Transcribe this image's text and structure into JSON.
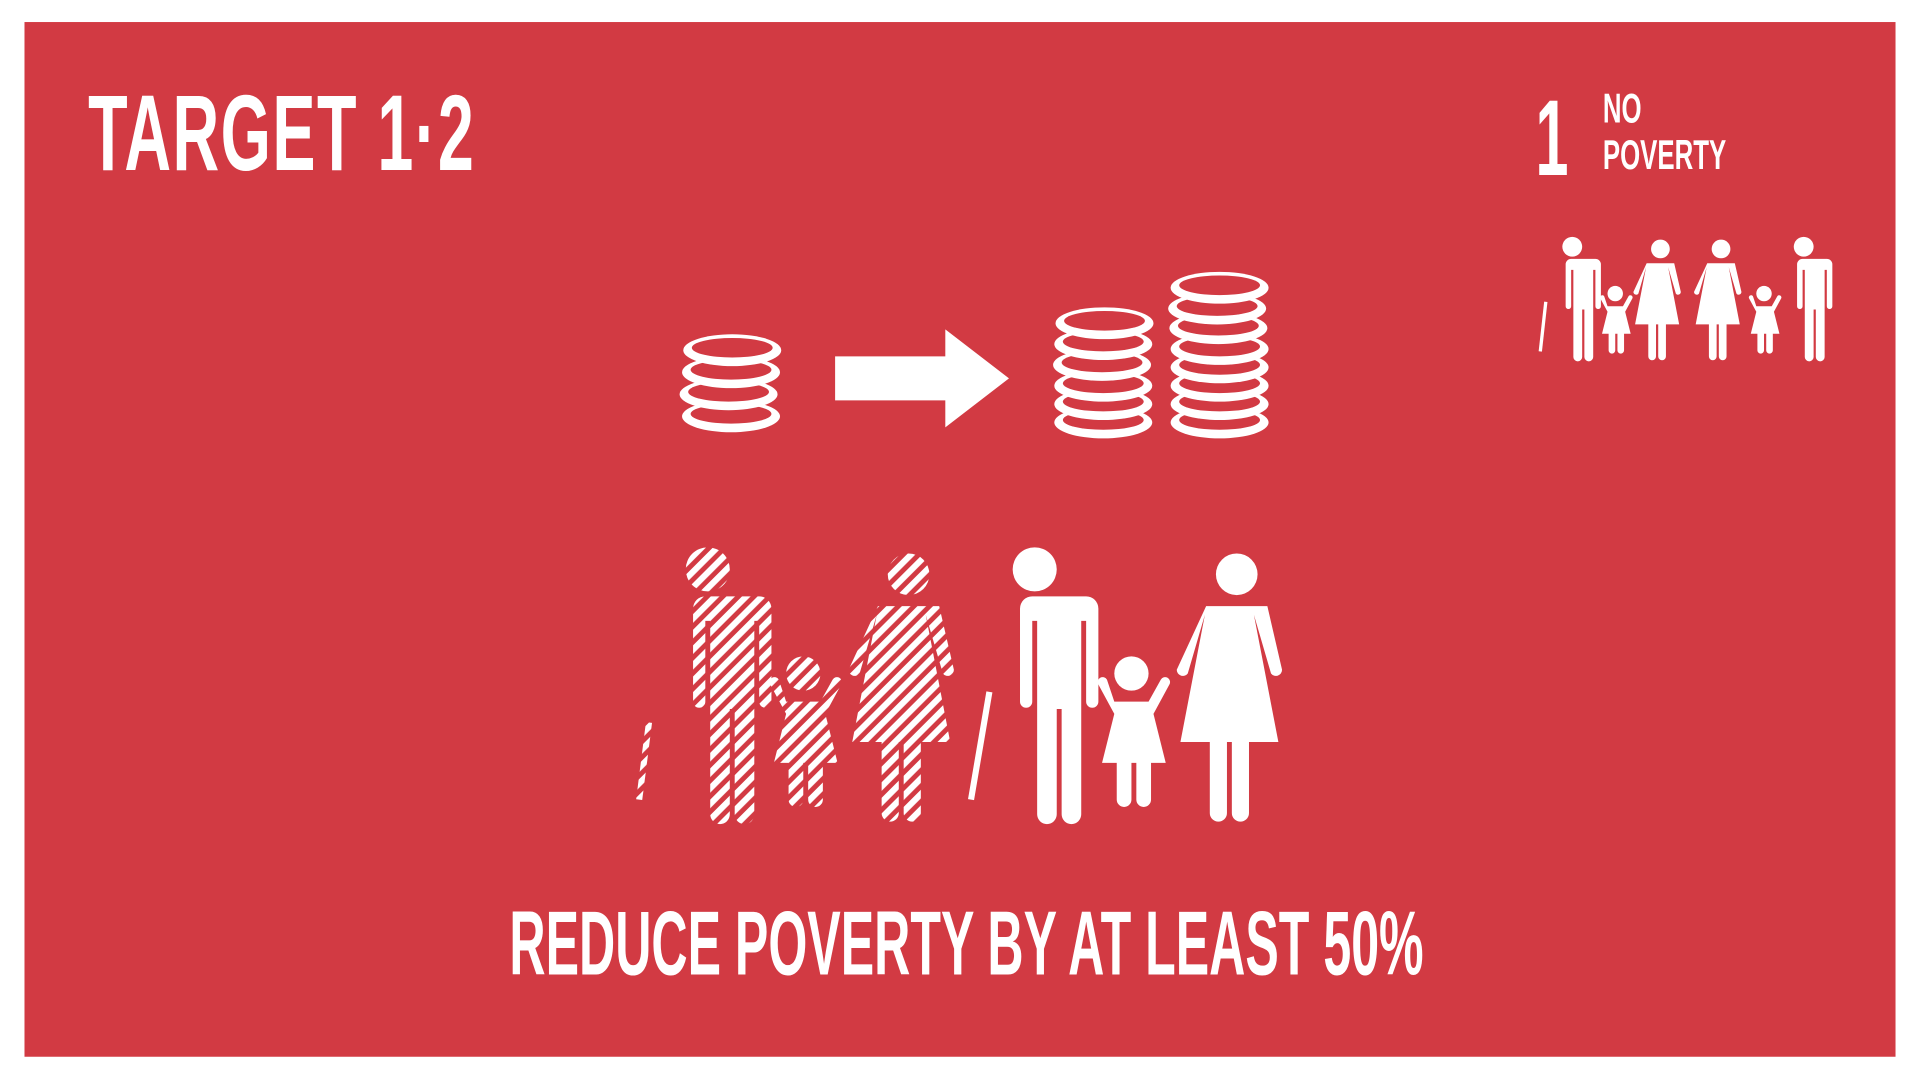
{
  "target": {
    "label": "TARGET 1·2"
  },
  "goal": {
    "number": "1",
    "name_line1": "NO",
    "name_line2": "POVERTY"
  },
  "caption": "REDUCE POVERTY BY AT LEAST 50%",
  "colors": {
    "background": "#d23a43",
    "foreground": "#ffffff"
  },
  "icons": [
    "coin-stack-icon",
    "arrow-right-icon",
    "family-icon",
    "striped-family-icon"
  ]
}
